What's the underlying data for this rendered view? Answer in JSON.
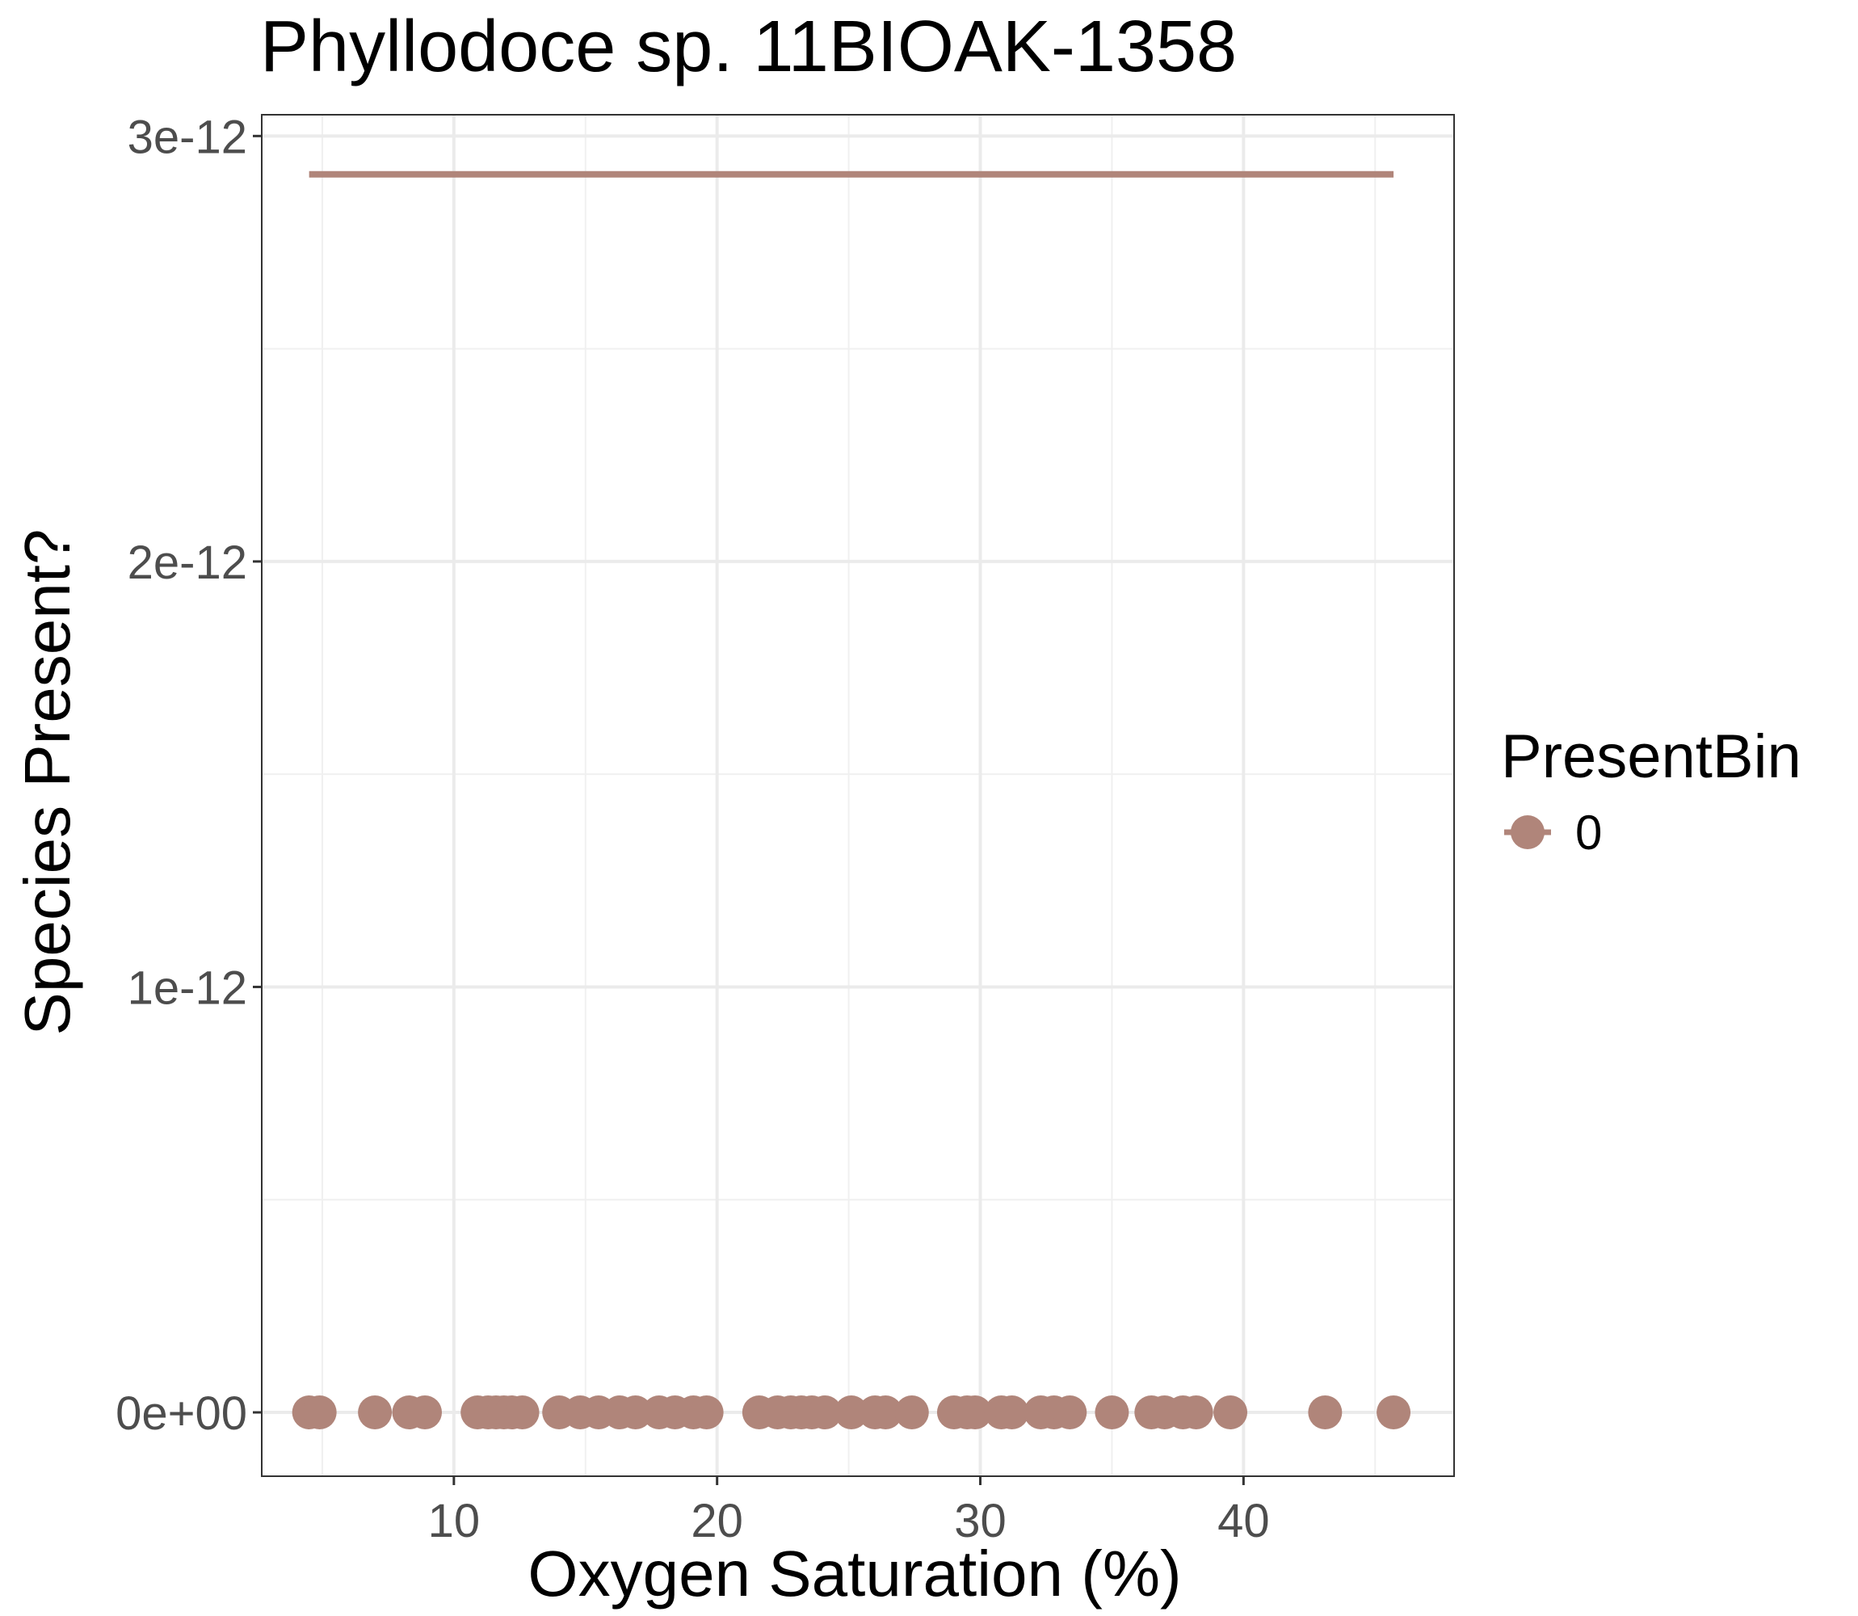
{
  "chart_data": {
    "type": "scatter",
    "title": "Phyllodoce sp. 11BIOAK-1358",
    "xlabel": "Oxygen Saturation (%)",
    "ylabel": "Species Present?",
    "xlim": [
      2.7,
      48.0
    ],
    "ylim": [
      -1.5e-13,
      3.05e-12
    ],
    "x_ticks": [
      10,
      20,
      30,
      40
    ],
    "x_tick_labels": [
      "10",
      "20",
      "30",
      "40"
    ],
    "y_ticks": [
      0,
      1e-12,
      2e-12,
      3e-12
    ],
    "y_tick_labels": [
      "0e+00",
      "1e-12",
      "2e-12",
      "3e-12"
    ],
    "grid": true,
    "legend": {
      "title": "PresentBin",
      "position": "right"
    },
    "series": [
      {
        "name": "0",
        "color": "#b0857a",
        "points_x": [
          4.5,
          4.9,
          7.0,
          8.3,
          8.9,
          10.9,
          11.3,
          11.6,
          11.9,
          12.2,
          12.6,
          14.0,
          14.8,
          15.5,
          16.3,
          16.9,
          17.8,
          18.4,
          19.1,
          19.6,
          21.6,
          22.3,
          22.8,
          23.2,
          23.6,
          24.1,
          25.1,
          26.0,
          26.4,
          27.4,
          29.0,
          29.5,
          29.8,
          30.8,
          31.2,
          32.3,
          32.8,
          33.4,
          35.0,
          36.5,
          37.0,
          37.7,
          38.2,
          39.5,
          43.1,
          45.7
        ],
        "points_y": [
          0,
          0,
          0,
          0,
          0,
          0,
          0,
          0,
          0,
          0,
          0,
          0,
          0,
          0,
          0,
          0,
          0,
          0,
          0,
          0,
          0,
          0,
          0,
          0,
          0,
          0,
          0,
          0,
          0,
          0,
          0,
          0,
          0,
          0,
          0,
          0,
          0,
          0,
          0,
          0,
          0,
          0,
          0,
          0,
          0,
          0
        ],
        "fit_line": {
          "x": [
            4.5,
            45.7
          ],
          "y": [
            2.91e-12,
            2.91e-12
          ]
        }
      }
    ]
  }
}
